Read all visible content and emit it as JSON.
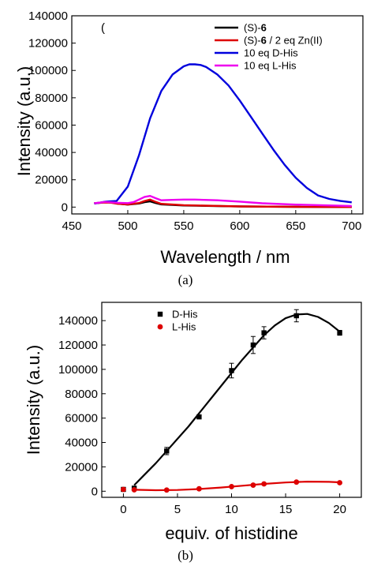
{
  "chart_data": [
    {
      "type": "line",
      "panel_label": "(",
      "caption": "(a)",
      "xlabel": "Wavelength / nm",
      "ylabel": "Intensity (a.u.)",
      "xlim": [
        450,
        710
      ],
      "ylim": [
        -5000,
        140000
      ],
      "xticks": [
        450,
        500,
        550,
        600,
        650,
        700
      ],
      "yticks": [
        0,
        20000,
        40000,
        60000,
        80000,
        100000,
        120000,
        140000
      ],
      "grid": false,
      "legend_position": "top-right",
      "series": [
        {
          "name_prefix": "(S)-",
          "name_bold": "6",
          "name_suffix": "",
          "color": "#000000",
          "x": [
            470,
            480,
            485,
            490,
            500,
            510,
            515,
            520,
            525,
            530,
            550,
            600,
            650,
            700
          ],
          "y": [
            2800,
            3600,
            3400,
            2600,
            1800,
            2600,
            3600,
            4200,
            3000,
            2000,
            1200,
            500,
            200,
            0
          ]
        },
        {
          "name_prefix": "(S)-",
          "name_bold": "6",
          "name_suffix": " / 2 eq Zn(II)",
          "color": "#dd0000",
          "x": [
            470,
            480,
            485,
            490,
            500,
            510,
            515,
            520,
            525,
            530,
            550,
            600,
            650,
            700
          ],
          "y": [
            2800,
            3400,
            3200,
            2500,
            1900,
            3000,
            4500,
            5500,
            3800,
            2400,
            1400,
            500,
            200,
            0
          ]
        },
        {
          "name": "10 eq D-His",
          "color": "#0000dd",
          "x": [
            470,
            480,
            490,
            500,
            510,
            520,
            530,
            540,
            550,
            555,
            560,
            565,
            570,
            580,
            590,
            600,
            610,
            620,
            630,
            640,
            650,
            660,
            670,
            680,
            690,
            700
          ],
          "y": [
            2500,
            4000,
            4500,
            15000,
            38000,
            65000,
            85000,
            97000,
            103000,
            104500,
            104500,
            104000,
            102500,
            97000,
            89000,
            78000,
            66000,
            54000,
            42000,
            31000,
            21500,
            14000,
            8500,
            6000,
            4500,
            3500
          ]
        },
        {
          "name": "10 eq L-His",
          "color": "#ee00ee",
          "x": [
            470,
            480,
            490,
            500,
            505,
            510,
            515,
            520,
            525,
            530,
            540,
            550,
            560,
            580,
            600,
            620,
            650,
            700
          ],
          "y": [
            2800,
            3800,
            3200,
            2900,
            3600,
            5500,
            7500,
            8200,
            6500,
            5000,
            5300,
            5500,
            5500,
            5000,
            4000,
            2800,
            1800,
            800
          ]
        }
      ]
    },
    {
      "type": "scatter",
      "caption": "(b)",
      "xlabel": "equiv. of histidine",
      "ylabel": "Intensity (a.u.)",
      "xlim": [
        -2,
        22
      ],
      "ylim": [
        -5000,
        155000
      ],
      "xticks": [
        0,
        5,
        10,
        15,
        20
      ],
      "yticks": [
        0,
        20000,
        40000,
        60000,
        80000,
        100000,
        120000,
        140000
      ],
      "grid": false,
      "legend_position": "top-left",
      "series": [
        {
          "name": "D-His",
          "color": "#000000",
          "marker": "square",
          "x": [
            0,
            1,
            4,
            7,
            10,
            12,
            13,
            16,
            20
          ],
          "y": [
            1500,
            2500,
            33000,
            61000,
            99000,
            120000,
            130000,
            144000,
            130000
          ],
          "error": [
            0,
            0,
            3000,
            0,
            6000,
            7000,
            5000,
            5000,
            2000
          ],
          "fit": {
            "x": [
              1,
              2,
              3,
              4,
              5,
              6,
              7,
              8,
              9,
              10,
              11,
              12,
              13,
              14,
              15,
              16,
              17,
              18,
              19,
              20
            ],
            "y": [
              5000,
              14000,
              23000,
              33000,
              43000,
              53000,
              64000,
              75000,
              86000,
              97000,
              108000,
              118000,
              128000,
              136000,
              142000,
              145000,
              145500,
              143000,
              138000,
              131000
            ]
          }
        },
        {
          "name": "L-His",
          "color": "#dd0000",
          "marker": "circle",
          "x": [
            0,
            1,
            4,
            7,
            10,
            12,
            13,
            16,
            20
          ],
          "y": [
            1500,
            1200,
            1000,
            2000,
            3800,
            5000,
            6000,
            7500,
            7000
          ],
          "fit": {
            "x": [
              1,
              3,
              5,
              7,
              9,
              11,
              13,
              15,
              17,
              19,
              20
            ],
            "y": [
              1200,
              800,
              1000,
              1800,
              3000,
              4500,
              6000,
              7200,
              7900,
              7700,
              7300
            ]
          }
        }
      ]
    }
  ]
}
